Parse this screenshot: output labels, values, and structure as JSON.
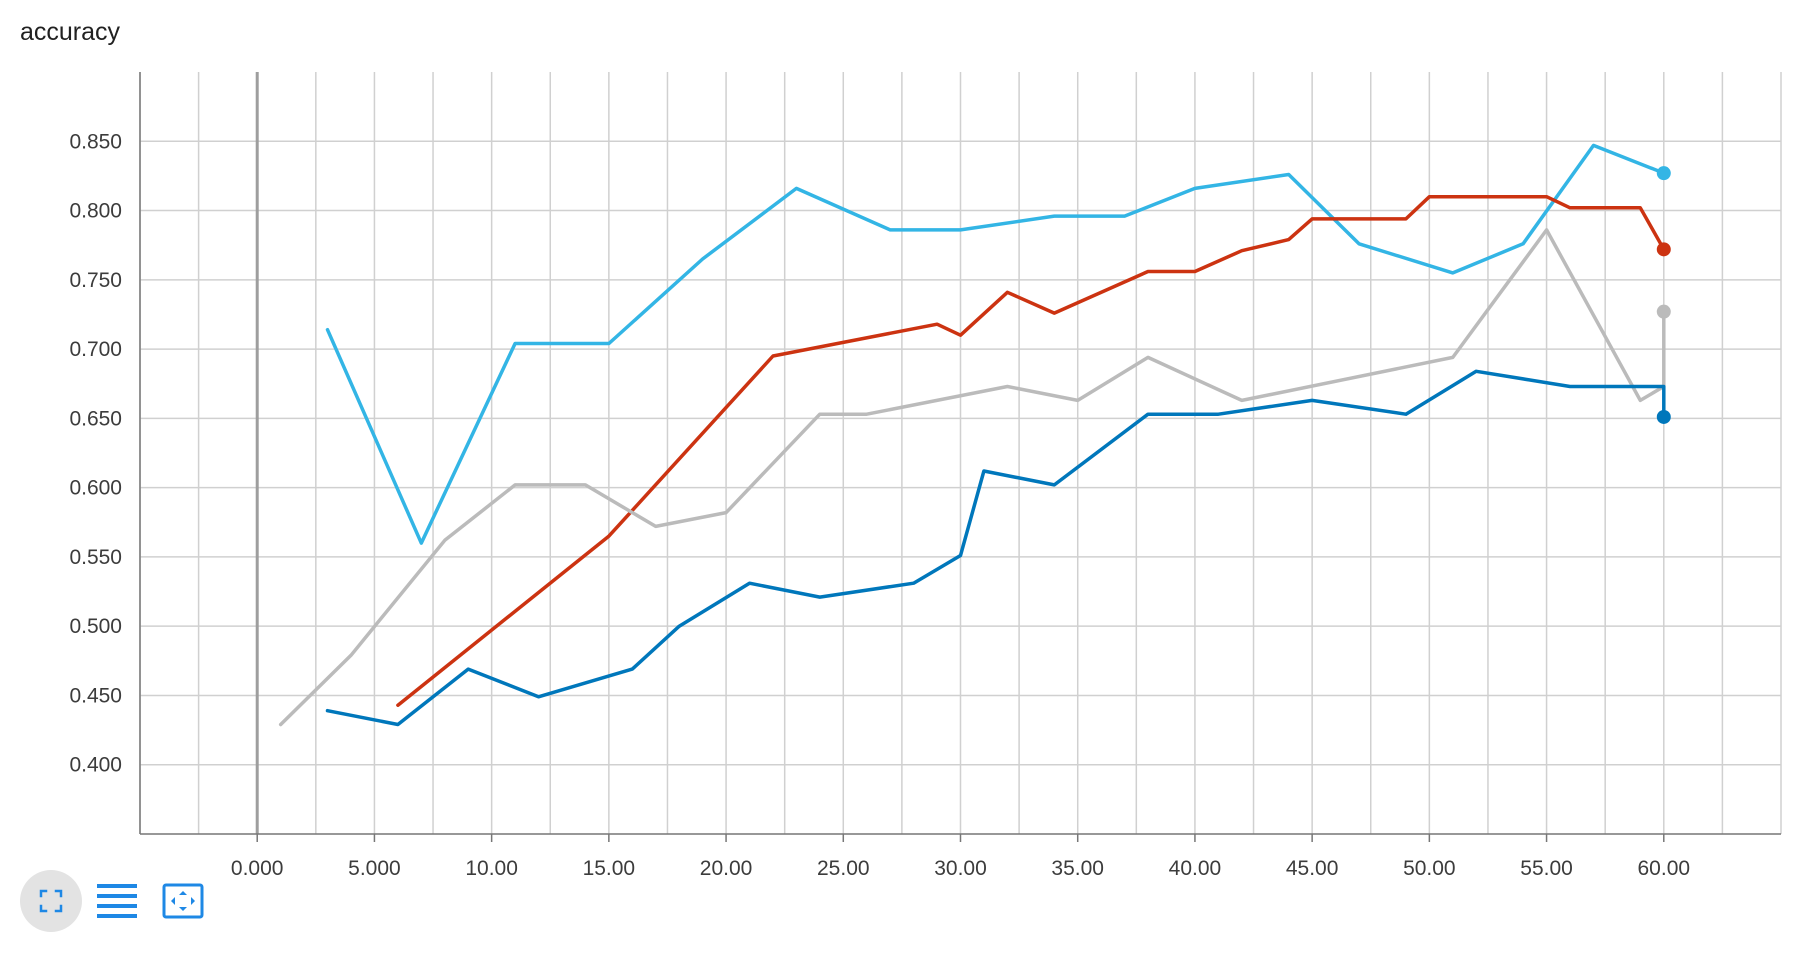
{
  "chart_data": {
    "type": "line",
    "title": "accuracy",
    "xlabel": "",
    "ylabel": "",
    "xlim": [
      -5,
      65
    ],
    "ylim": [
      0.35,
      0.9
    ],
    "x_ticks": [
      0,
      5,
      10,
      15,
      20,
      25,
      30,
      35,
      40,
      45,
      50,
      55,
      60
    ],
    "x_tick_labels": [
      "0.000",
      "5.000",
      "10.00",
      "15.00",
      "20.00",
      "25.00",
      "30.00",
      "35.00",
      "40.00",
      "45.00",
      "50.00",
      "55.00",
      "60.00"
    ],
    "y_ticks": [
      0.4,
      0.45,
      0.5,
      0.55,
      0.6,
      0.65,
      0.7,
      0.75,
      0.8,
      0.85
    ],
    "y_tick_labels": [
      "0.400",
      "0.450",
      "0.500",
      "0.550",
      "0.600",
      "0.650",
      "0.700",
      "0.750",
      "0.800",
      "0.850"
    ],
    "grid": true,
    "series": [
      {
        "color": "#33b5e5",
        "x": [
          3,
          7,
          11,
          15,
          19,
          23,
          27,
          30,
          34,
          37,
          40,
          44,
          47,
          51,
          54,
          57,
          60
        ],
        "y": [
          0.714,
          0.56,
          0.704,
          0.704,
          0.765,
          0.816,
          0.786,
          0.786,
          0.796,
          0.796,
          0.816,
          0.826,
          0.776,
          0.755,
          0.776,
          0.847,
          0.827
        ]
      },
      {
        "color": "#cc3311",
        "x": [
          6,
          15,
          22,
          29,
          30,
          32,
          34,
          38,
          40,
          42,
          44,
          45,
          49,
          50,
          55,
          56,
          59,
          60
        ],
        "y": [
          0.443,
          0.565,
          0.695,
          0.718,
          0.71,
          0.741,
          0.726,
          0.756,
          0.756,
          0.771,
          0.779,
          0.794,
          0.794,
          0.81,
          0.81,
          0.802,
          0.802,
          0.772
        ]
      },
      {
        "color": "#bbbbbb",
        "x": [
          1,
          4,
          8,
          11,
          14,
          17,
          20,
          24,
          26,
          32,
          35,
          38,
          42,
          51,
          55,
          59,
          60,
          60
        ],
        "y": [
          0.429,
          0.479,
          0.562,
          0.602,
          0.602,
          0.572,
          0.582,
          0.653,
          0.653,
          0.673,
          0.663,
          0.694,
          0.663,
          0.694,
          0.786,
          0.663,
          0.673,
          0.727
        ]
      },
      {
        "color": "#0077bb",
        "x": [
          3,
          6,
          9,
          12,
          16,
          18,
          21,
          24,
          28,
          30,
          31,
          34,
          38,
          41,
          45,
          49,
          52,
          56,
          60,
          60
        ],
        "y": [
          0.439,
          0.429,
          0.469,
          0.449,
          0.469,
          0.5,
          0.531,
          0.521,
          0.531,
          0.551,
          0.612,
          0.602,
          0.653,
          0.653,
          0.663,
          0.653,
          0.684,
          0.673,
          0.673,
          0.651
        ]
      }
    ]
  },
  "toolbar": {
    "buttons": [
      {
        "icon": "fullscreen-icon"
      },
      {
        "icon": "data-table-icon"
      },
      {
        "icon": "fit-domain-icon"
      }
    ]
  }
}
